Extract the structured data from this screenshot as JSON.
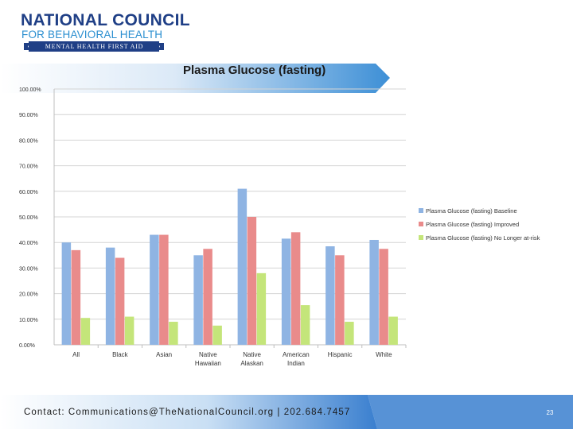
{
  "header": {
    "org_line1": "NATIONAL COUNCIL",
    "org_line2": "FOR BEHAVIORAL HEALTH",
    "program": "MENTAL HEALTH FIRST AID"
  },
  "footer": {
    "contact": "Contact: Communications@TheNationalCouncil.org  |  202.684.7457",
    "page_number": "23"
  },
  "colors": {
    "navy": "#1f3f86",
    "accent_blue": "#2b8fd0",
    "band_blue": "#3d8fd6",
    "baseline": "#8fb4e3",
    "improved": "#e98b8b",
    "no_longer": "#c4e57a"
  },
  "chart_data": {
    "type": "bar",
    "title": "Plasma Glucose (fasting)",
    "categories": [
      [
        "All"
      ],
      [
        "Black"
      ],
      [
        "Asian"
      ],
      [
        "Native",
        "Hawaiian"
      ],
      [
        "Native",
        "Alaskan"
      ],
      [
        "American",
        "Indian"
      ],
      [
        "Hispanic"
      ],
      [
        "White"
      ]
    ],
    "series": [
      {
        "name": "Plasma Glucose (fasting) Baseline",
        "color": "#8fb4e3",
        "values": [
          40,
          38,
          43,
          35,
          61,
          41.5,
          38.5,
          41
        ]
      },
      {
        "name": "Plasma Glucose (fasting) Improved",
        "color": "#e98b8b",
        "values": [
          37,
          34,
          43,
          37.5,
          50,
          44,
          35,
          37.5
        ]
      },
      {
        "name": "Plasma Glucose (fasting) No Longer at-risk",
        "color": "#c4e57a",
        "values": [
          10.5,
          11,
          9,
          7.5,
          28,
          15.5,
          9,
          11
        ]
      }
    ],
    "yticks": [
      "0.00%",
      "10.00%",
      "20.00%",
      "30.00%",
      "40.00%",
      "50.00%",
      "60.00%",
      "70.00%",
      "80.00%",
      "90.00%",
      "100.00%"
    ],
    "ylim": [
      0,
      100
    ],
    "grid": true,
    "legend": "right"
  }
}
